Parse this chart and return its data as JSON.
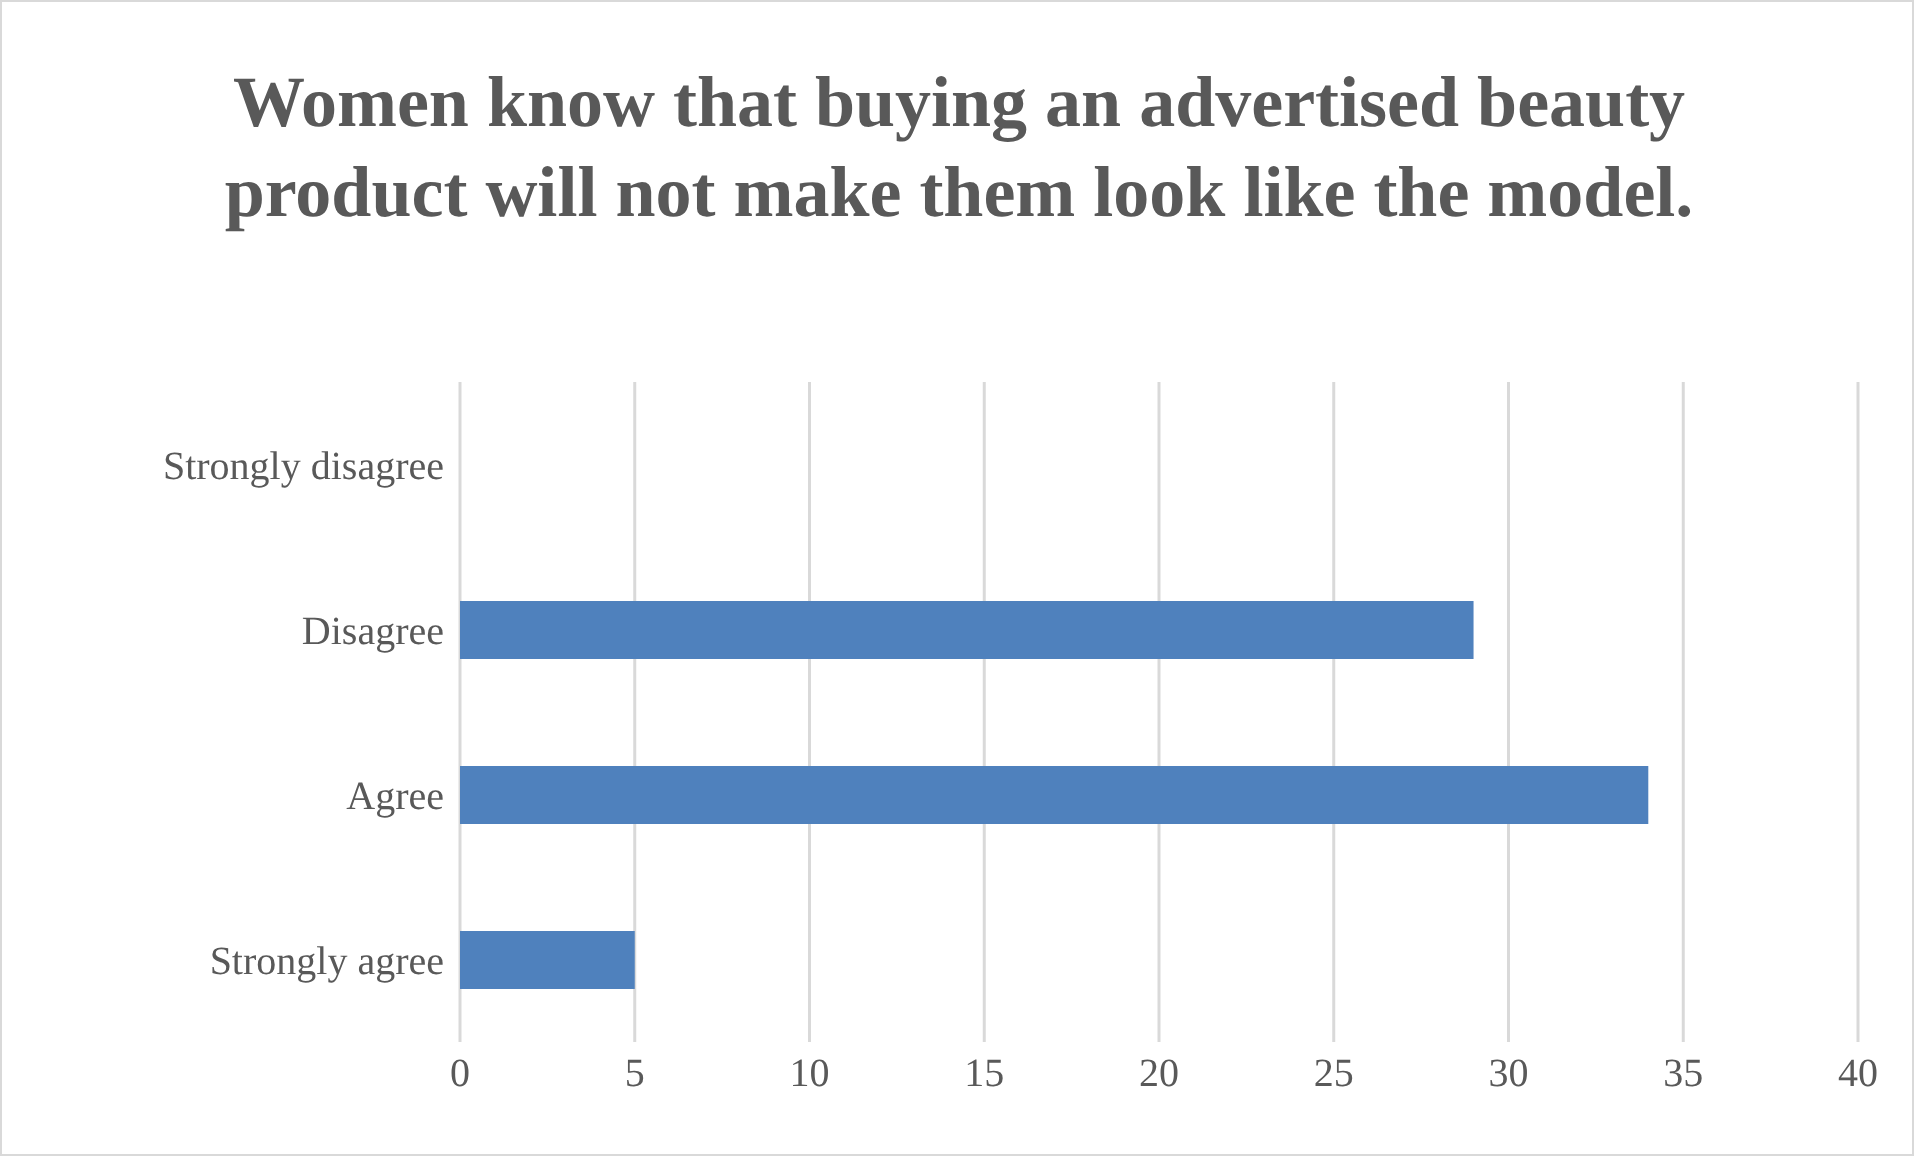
{
  "chart_data": {
    "type": "bar",
    "orientation": "horizontal",
    "title": "Women know that buying an advertised beauty product will not make them look like the model.",
    "categories": [
      "Strongly disagree",
      "Disagree",
      "Agree",
      "Strongly agree"
    ],
    "values": [
      0,
      29,
      34,
      5
    ],
    "color": "#4f81bd",
    "xlim": [
      0,
      40
    ],
    "xticks": [
      0,
      5,
      10,
      15,
      20,
      25,
      30,
      35,
      40
    ],
    "grid": "x",
    "legend": false
  }
}
